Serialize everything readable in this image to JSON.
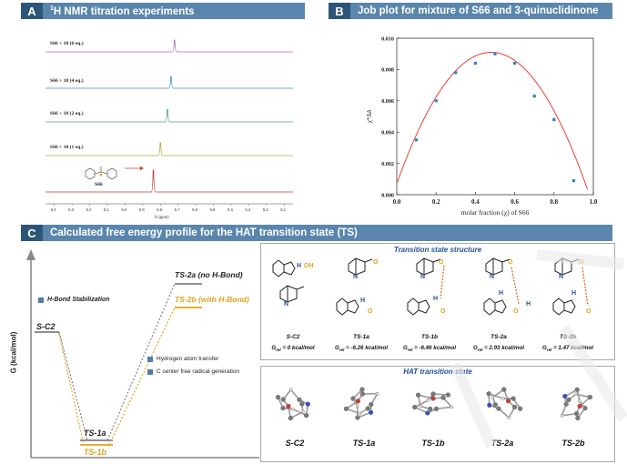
{
  "panelA": {
    "letter": "A",
    "title_sup": "1",
    "title": "H NMR titration experiments",
    "spectra": [
      {
        "label": "S66 + 10 (6 eq.)",
        "color": "#b86ab0",
        "peak_ppm": 5.72
      },
      {
        "label": "S66 + 10 (4 eq.)",
        "color": "#4a8fc8",
        "peak_ppm": 5.74
      },
      {
        "label": "S66 + 10 (2 eq.)",
        "color": "#4aa38a",
        "peak_ppm": 5.76
      },
      {
        "label": "S66 + 10 (1 eq.)",
        "color": "#b0a83a",
        "peak_ppm": 5.8
      },
      {
        "label": "S66",
        "color": "#c23a3a",
        "peak_ppm": 5.84
      }
    ],
    "x_ticks": [
      "6.4",
      "6.3",
      "6.2",
      "6.1",
      "6.0",
      "5.9",
      "5.8",
      "5.7",
      "5.6",
      "5.5",
      "5.4",
      "5.3",
      "5.2",
      "5.1"
    ],
    "x_label": "f1 (ppm)"
  },
  "panelB": {
    "letter": "B",
    "title": "Job plot for mixture of S66 and 3-quinuclidinone",
    "chart_data": {
      "type": "scatter",
      "title": "Job plot for mixture of S66 and 3-quinuclidinone",
      "xlabel": "molar fraction (χ) of S66",
      "ylabel": "χ*Δδ",
      "xlim": [
        0.0,
        1.0
      ],
      "ylim": [
        0.0,
        0.01
      ],
      "x_ticks": [
        "0.0",
        "0.2",
        "0.4",
        "0.6",
        "0.8",
        "1.0"
      ],
      "y_ticks": [
        "0.000",
        "0.002",
        "0.004",
        "0.006",
        "0.008",
        "0.010"
      ],
      "points": [
        {
          "x": 0.1,
          "y": 0.0035
        },
        {
          "x": 0.2,
          "y": 0.006
        },
        {
          "x": 0.3,
          "y": 0.0078
        },
        {
          "x": 0.4,
          "y": 0.0084
        },
        {
          "x": 0.5,
          "y": 0.009
        },
        {
          "x": 0.6,
          "y": 0.0084
        },
        {
          "x": 0.7,
          "y": 0.0063
        },
        {
          "x": 0.8,
          "y": 0.0048
        },
        {
          "x": 0.9,
          "y": 0.0009
        }
      ],
      "fit": {
        "type": "quadratic",
        "vertex_x": 0.48,
        "vertex_y": 0.0091,
        "y_at_0": 0.0007
      },
      "point_color": "#2f7fc8",
      "fit_color": "#e8403a",
      "grid": false
    }
  },
  "panelC": {
    "letter": "C",
    "title": "Calculated free energy profile for the HAT transition state (TS)",
    "y_axis_label": "G (kcal/mol)",
    "legend": {
      "hbond": "H-Bond Stabilization",
      "hat": "Hydrogen atom transfer",
      "radical": "C center free radical generation"
    },
    "levels": {
      "sc2": "S-C2",
      "ts1a": "TS-1a",
      "ts1b": "TS-1b",
      "ts2a": "TS-2a",
      "ts2a_note": "(no H-Bond)",
      "ts2b": "TS-2b",
      "ts2b_note": "(with H-Bond)"
    },
    "colors": {
      "grey": "#7f7f7f",
      "gold": "#e0a21b"
    },
    "ts_box": {
      "title": "Transition state structure",
      "molecules": [
        {
          "name": "S-C2",
          "g": "G",
          "g_sub": "rel",
          "g_val": " = 0 kcal/mol"
        },
        {
          "name": "TS-1a",
          "g": "G",
          "g_sub": "rel",
          "g_val": " = -6.26 kcal/mol"
        },
        {
          "name": "TS-1b",
          "g": "G",
          "g_sub": "rel",
          "g_val": " = -6.46 kcal/mol"
        },
        {
          "name": "TS-2a",
          "g": "G",
          "g_sub": "rel",
          "g_val": " = 2.93 kcal/mol"
        },
        {
          "name": "TS-2b",
          "g": "G",
          "g_sub": "rel",
          "g_val": " = 1.47 kcal/mol"
        }
      ]
    },
    "hat_box": {
      "title": "HAT transition state",
      "names": [
        "S-C2",
        "TS-1a",
        "TS-1b",
        "TS-2a",
        "TS-2b"
      ]
    }
  }
}
